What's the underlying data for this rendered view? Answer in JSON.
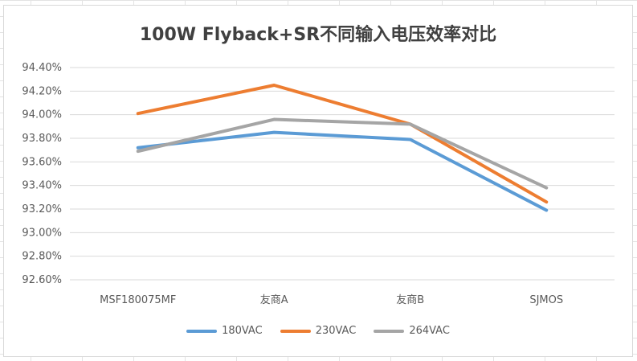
{
  "chart_data": {
    "type": "line",
    "title": "100W Flyback+SR不同输入电压效率对比",
    "categories": [
      "MSF180075MF",
      "友商A",
      "友商B",
      "SJMOS"
    ],
    "ylim": [
      92.6,
      94.5
    ],
    "yticks": [
      "94.40%",
      "94.20%",
      "94.00%",
      "93.80%",
      "93.60%",
      "93.40%",
      "93.20%",
      "93.00%",
      "92.80%",
      "92.60%"
    ],
    "ytick_values": [
      94.4,
      94.2,
      94.0,
      93.8,
      93.6,
      93.4,
      93.2,
      93.0,
      92.8,
      92.6
    ],
    "grid": true,
    "legend_position": "bottom",
    "series": [
      {
        "name": "180VAC",
        "color": "#5B9BD5",
        "values": [
          93.72,
          93.85,
          93.79,
          93.19
        ]
      },
      {
        "name": "230VAC",
        "color": "#ED7D31",
        "values": [
          94.01,
          94.25,
          93.92,
          93.26
        ]
      },
      {
        "name": "264VAC",
        "color": "#A5A5A5",
        "values": [
          93.69,
          93.96,
          93.92,
          93.38
        ]
      }
    ]
  }
}
